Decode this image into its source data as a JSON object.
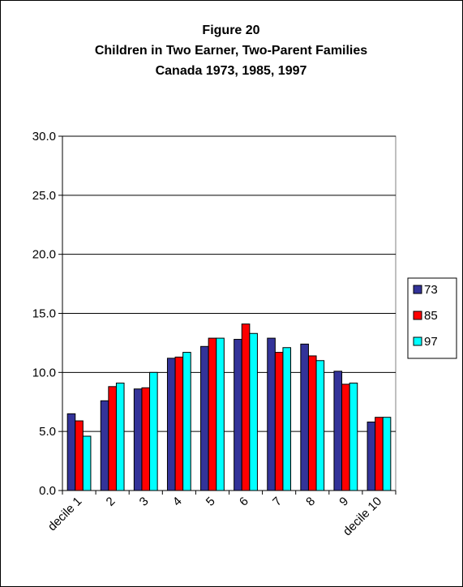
{
  "chart_data": {
    "type": "bar",
    "title": [
      "Figure 20",
      "Children in Two Earner, Two-Parent Families",
      "Canada 1973, 1985, 1997"
    ],
    "categories": [
      "decile 1",
      "2",
      "3",
      "4",
      "5",
      "6",
      "7",
      "8",
      "9",
      "decile 10"
    ],
    "series": [
      {
        "name": "73",
        "color": "#333399",
        "values": [
          6.5,
          7.6,
          8.6,
          11.2,
          12.2,
          12.8,
          12.9,
          12.4,
          10.1,
          5.8
        ]
      },
      {
        "name": "85",
        "color": "#ff0000",
        "values": [
          5.9,
          8.8,
          8.7,
          11.3,
          12.9,
          14.1,
          11.7,
          11.4,
          9.0,
          6.2
        ]
      },
      {
        "name": "97",
        "color": "#00ffff",
        "values": [
          4.6,
          9.1,
          10.0,
          11.7,
          12.9,
          13.3,
          12.1,
          11.0,
          9.1,
          6.2
        ]
      }
    ],
    "ylim": [
      0,
      30
    ],
    "yticks": [
      {
        "value": 0,
        "label": "0.0"
      },
      {
        "value": 5,
        "label": "5.0"
      },
      {
        "value": 10,
        "label": "10.0"
      },
      {
        "value": 15,
        "label": "15.0"
      },
      {
        "value": 20,
        "label": "20.0"
      },
      {
        "value": 25,
        "label": "25.0"
      },
      {
        "value": 30,
        "label": "30.0"
      }
    ],
    "grid": true,
    "legend": "right"
  }
}
